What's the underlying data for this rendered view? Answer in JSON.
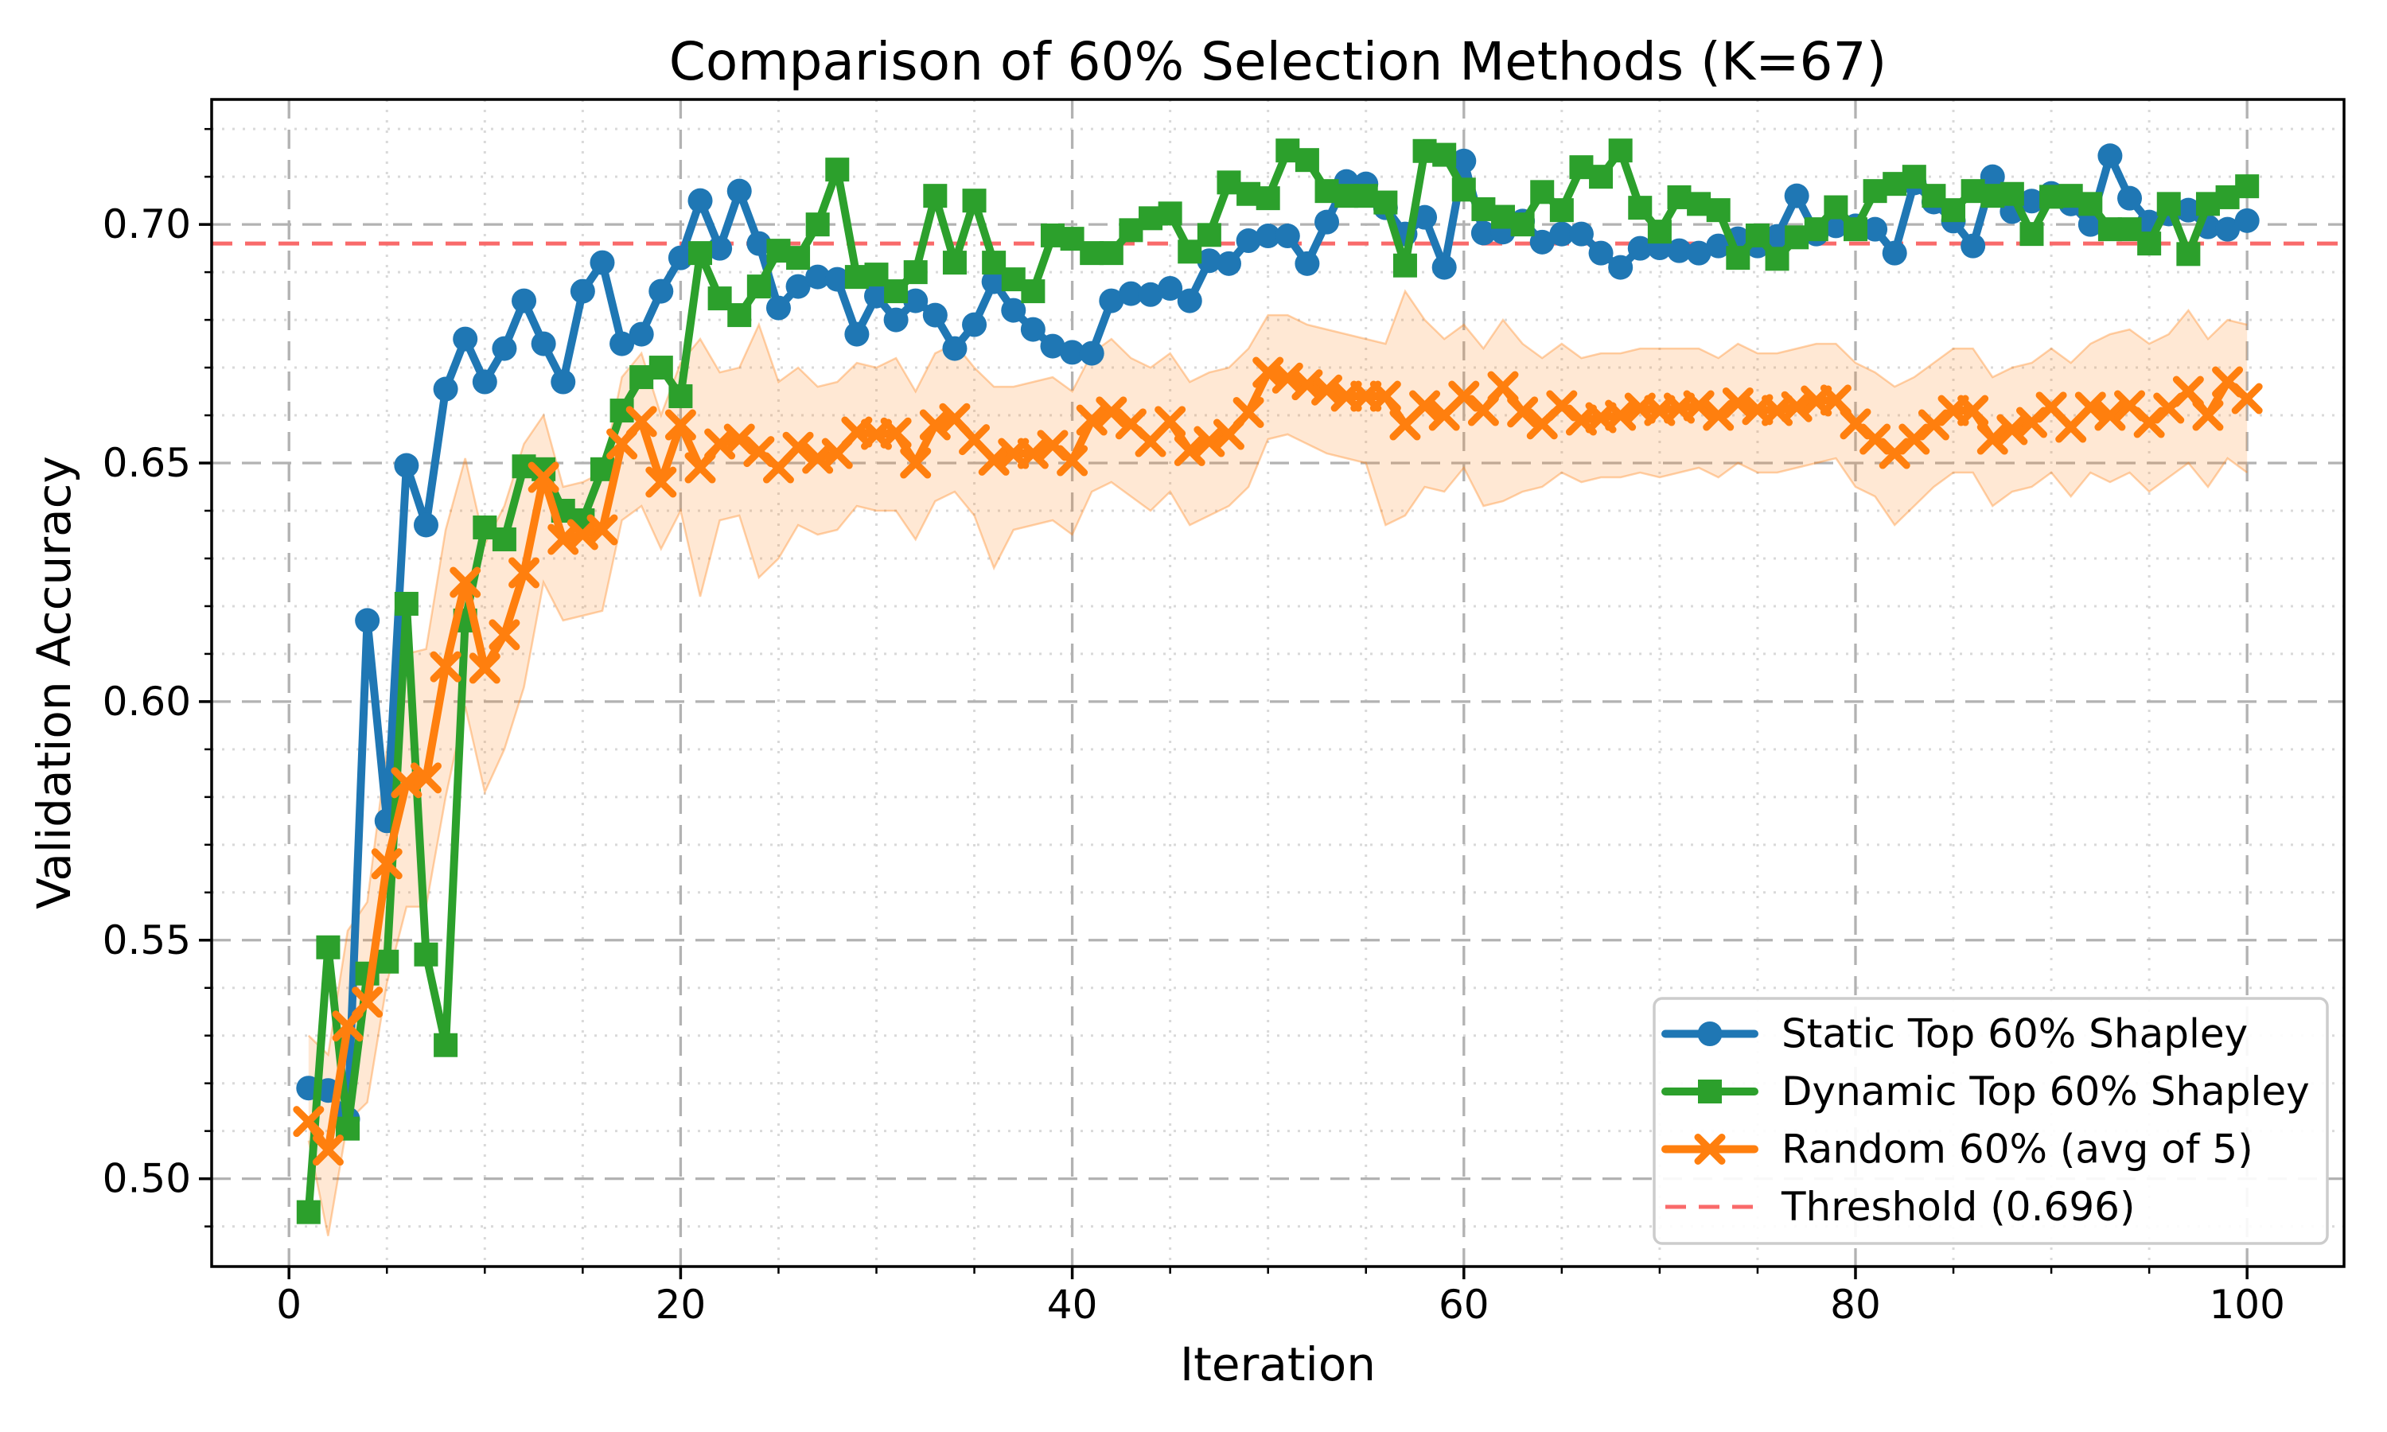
{
  "chart_data": {
    "type": "line",
    "title": "Comparison of 60% Selection Methods (K=67)",
    "xlabel": "Iteration",
    "ylabel": "Validation Accuracy",
    "xlim": [
      -3.95,
      104.95
    ],
    "ylim": [
      0.4816,
      0.7262
    ],
    "x_start": 1,
    "xticks": [
      0,
      20,
      40,
      60,
      80,
      100
    ],
    "yticks": [
      "0.50",
      "0.55",
      "0.60",
      "0.65",
      "0.70"
    ],
    "ytick_values": [
      0.5,
      0.55,
      0.6,
      0.65,
      0.7
    ],
    "x_minor_step": 5,
    "y_minor_step": 0.01,
    "grid": true,
    "legend_position": "lower right",
    "threshold": {
      "label": "Threshold (0.696)",
      "value": 0.696,
      "color": "#f96a6a"
    },
    "band_color": "#ff7f0e",
    "band_opacity": 0.18,
    "series": [
      {
        "name": "Static Top 60% Shapley",
        "color": "#1f77b4",
        "marker": "circle",
        "values": [
          0.519,
          0.5185,
          0.5125,
          0.617,
          0.575,
          0.6495,
          0.637,
          0.6655,
          0.676,
          0.667,
          0.674,
          0.684,
          0.675,
          0.667,
          0.686,
          0.692,
          0.675,
          0.677,
          0.686,
          0.693,
          0.705,
          0.695,
          0.707,
          0.696,
          0.6825,
          0.687,
          0.689,
          0.6885,
          0.677,
          0.685,
          0.68,
          0.684,
          0.681,
          0.674,
          0.679,
          0.688,
          0.682,
          0.678,
          0.6745,
          0.6732,
          0.673,
          0.684,
          0.6855,
          0.6853,
          0.6866,
          0.684,
          0.6924,
          0.6918,
          0.6966,
          0.6976,
          0.6976,
          0.6918,
          0.7005,
          0.709,
          0.7085,
          0.7035,
          0.698,
          0.7015,
          0.691,
          0.7133,
          0.6982,
          0.6984,
          0.7007,
          0.6963,
          0.698,
          0.698,
          0.694,
          0.691,
          0.695,
          0.6951,
          0.6945,
          0.694,
          0.6955,
          0.697,
          0.6955,
          0.6975,
          0.706,
          0.698,
          0.6997,
          0.6997,
          0.699,
          0.694,
          0.7087,
          0.7047,
          0.7007,
          0.6955,
          0.71,
          0.7027,
          0.7049,
          0.7065,
          0.7043,
          0.7,
          0.7144,
          0.7055,
          0.7005,
          0.7022,
          0.703,
          0.6995,
          0.699,
          0.7008
        ]
      },
      {
        "name": "Dynamic Top 60% Shapley",
        "color": "#2ca02c",
        "marker": "square",
        "values": [
          0.493,
          0.5485,
          0.5105,
          0.543,
          0.5455,
          0.6205,
          0.547,
          0.528,
          0.617,
          0.6365,
          0.634,
          0.6493,
          0.6487,
          0.64,
          0.638,
          0.6487,
          0.661,
          0.668,
          0.67,
          0.664,
          0.694,
          0.6845,
          0.681,
          0.687,
          0.6945,
          0.693,
          0.7,
          0.7115,
          0.689,
          0.6895,
          0.686,
          0.69,
          0.706,
          0.692,
          0.705,
          0.692,
          0.6885,
          0.686,
          0.6977,
          0.697,
          0.694,
          0.694,
          0.6988,
          0.7013,
          0.7023,
          0.6943,
          0.6978,
          0.7088,
          0.7064,
          0.7055,
          0.7155,
          0.7135,
          0.707,
          0.706,
          0.706,
          0.7046,
          0.6914,
          0.7154,
          0.7146,
          0.7073,
          0.7032,
          0.7016,
          0.7,
          0.7068,
          0.703,
          0.712,
          0.71,
          0.7155,
          0.7035,
          0.6985,
          0.7057,
          0.7043,
          0.703,
          0.693,
          0.6977,
          0.6928,
          0.6973,
          0.699,
          0.7036,
          0.699,
          0.707,
          0.7085,
          0.71,
          0.706,
          0.703,
          0.707,
          0.706,
          0.7064,
          0.698,
          0.7058,
          0.706,
          0.7043,
          0.699,
          0.699,
          0.696,
          0.7043,
          0.6938,
          0.7043,
          0.7057,
          0.708
        ]
      },
      {
        "name": "Random 60% (avg of 5)",
        "color": "#ff7f0e",
        "marker": "x",
        "values": [
          0.512,
          0.506,
          0.532,
          0.537,
          0.566,
          0.583,
          0.584,
          0.6073,
          0.625,
          0.607,
          0.614,
          0.627,
          0.647,
          0.634,
          0.635,
          0.636,
          0.654,
          0.6587,
          0.646,
          0.658,
          0.649,
          0.654,
          0.655,
          0.6524,
          0.649,
          0.6533,
          0.651,
          0.652,
          0.6565,
          0.656,
          0.6563,
          0.65,
          0.658,
          0.6593,
          0.6549,
          0.6506,
          0.652,
          0.652,
          0.6537,
          0.6505,
          0.659,
          0.6607,
          0.6582,
          0.6545,
          0.6587,
          0.6526,
          0.6545,
          0.656,
          0.6606,
          0.669,
          0.6678,
          0.6664,
          0.6653,
          0.664,
          0.664,
          0.664,
          0.658,
          0.662,
          0.66,
          0.664,
          0.661,
          0.666,
          0.6607,
          0.6582,
          0.662,
          0.659,
          0.6595,
          0.66,
          0.6615,
          0.661,
          0.6615,
          0.662,
          0.66,
          0.6626,
          0.6612,
          0.661,
          0.6618,
          0.663,
          0.6632,
          0.6582,
          0.655,
          0.652,
          0.655,
          0.658,
          0.661,
          0.661,
          0.655,
          0.657,
          0.6585,
          0.6617,
          0.6575,
          0.6617,
          0.66,
          0.662,
          0.6585,
          0.6615,
          0.665,
          0.66,
          0.667,
          0.6635
        ],
        "band_upper": [
          0.53,
          0.526,
          0.552,
          0.558,
          0.59,
          0.61,
          0.611,
          0.636,
          0.651,
          0.633,
          0.641,
          0.654,
          0.66,
          0.645,
          0.646,
          0.648,
          0.668,
          0.673,
          0.66,
          0.671,
          0.676,
          0.669,
          0.67,
          0.679,
          0.667,
          0.67,
          0.666,
          0.667,
          0.671,
          0.67,
          0.672,
          0.665,
          0.673,
          0.675,
          0.67,
          0.666,
          0.666,
          0.667,
          0.668,
          0.665,
          0.673,
          0.676,
          0.672,
          0.67,
          0.673,
          0.667,
          0.669,
          0.67,
          0.674,
          0.681,
          0.681,
          0.679,
          0.678,
          0.677,
          0.676,
          0.675,
          0.686,
          0.68,
          0.676,
          0.679,
          0.674,
          0.68,
          0.675,
          0.672,
          0.675,
          0.672,
          0.673,
          0.673,
          0.674,
          0.674,
          0.674,
          0.674,
          0.672,
          0.675,
          0.673,
          0.673,
          0.674,
          0.675,
          0.675,
          0.671,
          0.669,
          0.666,
          0.668,
          0.671,
          0.674,
          0.674,
          0.668,
          0.67,
          0.671,
          0.674,
          0.671,
          0.675,
          0.677,
          0.678,
          0.675,
          0.677,
          0.682,
          0.676,
          0.68,
          0.679
        ],
        "band_lower": [
          0.508,
          0.488,
          0.512,
          0.516,
          0.541,
          0.557,
          0.557,
          0.58,
          0.599,
          0.581,
          0.59,
          0.603,
          0.625,
          0.617,
          0.618,
          0.619,
          0.638,
          0.641,
          0.632,
          0.64,
          0.622,
          0.638,
          0.639,
          0.626,
          0.63,
          0.637,
          0.635,
          0.636,
          0.641,
          0.64,
          0.64,
          0.634,
          0.642,
          0.644,
          0.639,
          0.628,
          0.636,
          0.637,
          0.638,
          0.635,
          0.644,
          0.646,
          0.643,
          0.64,
          0.644,
          0.637,
          0.639,
          0.641,
          0.645,
          0.655,
          0.656,
          0.654,
          0.652,
          0.651,
          0.65,
          0.637,
          0.639,
          0.645,
          0.644,
          0.649,
          0.641,
          0.642,
          0.644,
          0.645,
          0.648,
          0.646,
          0.647,
          0.647,
          0.648,
          0.647,
          0.648,
          0.649,
          0.647,
          0.65,
          0.648,
          0.648,
          0.649,
          0.65,
          0.651,
          0.645,
          0.643,
          0.637,
          0.641,
          0.645,
          0.648,
          0.648,
          0.641,
          0.644,
          0.645,
          0.648,
          0.643,
          0.648,
          0.646,
          0.648,
          0.644,
          0.647,
          0.65,
          0.645,
          0.651,
          0.648
        ]
      }
    ]
  },
  "style": {
    "grid_major_color": "#b2b2b2",
    "grid_minor_color": "#d9d9d9",
    "spine_color": "#000000",
    "background": "#ffffff"
  }
}
